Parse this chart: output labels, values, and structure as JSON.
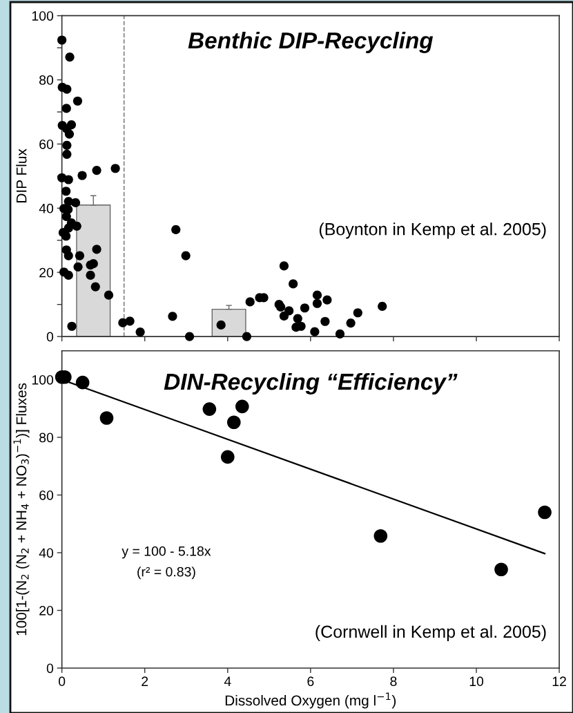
{
  "chart_data": [
    {
      "type": "scatter",
      "title": "Benthic DIP-Recycling",
      "ylabel": "DIP Flux",
      "xlim": [
        0,
        12
      ],
      "xticks": [
        0,
        2,
        4,
        6,
        8,
        10,
        12
      ],
      "tick_labels": "y",
      "ylim": [
        0,
        100
      ],
      "yticks": [
        0,
        {
          "value": 10,
          "label": null
        },
        20,
        {
          "value": 30,
          "label": null
        },
        40,
        {
          "value": 50,
          "label": null
        },
        60,
        {
          "value": 70,
          "label": null
        },
        80,
        {
          "value": 90,
          "label": null
        },
        100
      ],
      "ref_lines": [
        {
          "axis": "x",
          "value": 1.5,
          "label": null,
          "color": "#808080",
          "line_style": "dashed"
        }
      ],
      "annotations": [
        "(Boynton in Kemp et al. 2005)"
      ],
      "series": [
        {
          "type": "bar",
          "color": "#d9d9d9",
          "x": [
            0.76,
            4.03
          ],
          "values": [
            41.0,
            8.5
          ],
          "errors": [
            [
              41.0,
              43.9
            ],
            [
              8.5,
              9.7
            ]
          ]
        },
        {
          "color": "#000000",
          "marker": "circle",
          "x": [
            0,
            0.19,
            0.01,
            0.12,
            0.38,
            0.11,
            0.01,
            0.23,
            0.12,
            0.18,
            0.12,
            0.12,
            0,
            0.16,
            0.49,
            0.84,
            1.29,
            0.1,
            0.16,
            0.33,
            0.05,
            0.15,
            0.11,
            0.03,
            0.1,
            0.16,
            0.23,
            0.36,
            0.11,
            0.16,
            0.43,
            0.84,
            0.05,
            0.16,
            0.39,
            0.69,
            0.76,
            0.69,
            0.81,
            1.13,
            0.24,
            1.47,
            1.64,
            1.89,
            2.67,
            2.75,
            2.99,
            3.08,
            3.84,
            4.46,
            4.54,
            4.77,
            4.87,
            5.36,
            5.58,
            5.24,
            5.28,
            5.48,
            5.36,
            5.86,
            5.69,
            5.65,
            5.77,
            6.16,
            6.16,
            6.4,
            6.35,
            6.1,
            6.71,
            6.97,
            7.14,
            7.73
          ],
          "values": [
            92.4,
            87.1,
            77.7,
            77.1,
            73.4,
            71.1,
            65.8,
            66,
            64.7,
            63.1,
            59.6,
            56.8,
            49.5,
            48.9,
            50.2,
            51.8,
            52.4,
            45.3,
            42.1,
            41.7,
            39.9,
            39.6,
            37.4,
            32.4,
            31.3,
            33.8,
            35.4,
            34.4,
            27,
            25.2,
            25.2,
            27.2,
            20.1,
            19.1,
            21.7,
            22.3,
            22.7,
            19.1,
            15.5,
            12.9,
            3.2,
            4.3,
            4.8,
            1.4,
            6.3,
            33.3,
            25.2,
            0,
            3.6,
            0,
            10.8,
            12.1,
            12.1,
            22,
            16.4,
            10,
            9.2,
            8,
            6.4,
            8.9,
            5.6,
            2.9,
            3.2,
            12.9,
            10.3,
            11.4,
            4.7,
            1.5,
            0.8,
            4.2,
            7.4,
            9.4
          ]
        }
      ]
    },
    {
      "type": "scatter",
      "title": "DIN-Recycling “Efficiency”",
      "xlabel": "Dissolved Oxygen (mg l$^{−1}$)",
      "ylabel": "100[1-(N$_{2}$ (N$_{2}$ + NH$_{4}$ + NO$_{3}$)$^{−1}$)] Fluxes",
      "xlim": [
        0,
        12
      ],
      "xticks": [
        0,
        2,
        4,
        6,
        8,
        10,
        12
      ],
      "ylim": [
        0,
        110
      ],
      "yticks": [
        0,
        20,
        40,
        60,
        80,
        100
      ],
      "annotations": [
        "y = 100 - 5.18x",
        "(r² = 0.83)",
        "(Cornwell in Kemp et al. 2005)"
      ],
      "series": [
        {
          "color": "#000000",
          "marker": "circle",
          "x": [
            0,
            0.07,
            0.5,
            1.08,
            3.56,
            4.35,
            4.15,
            4.0,
            7.69,
            10.6,
            11.65
          ],
          "values": [
            100.9,
            100.9,
            99.0,
            86.7,
            89.8,
            90.7,
            85.2,
            73.2,
            45.8,
            34.2,
            54.0
          ]
        },
        {
          "type": "line",
          "color": "#000000",
          "line_style": "solid",
          "x": [
            0,
            11.65
          ],
          "values": [
            100,
            39.7
          ]
        }
      ]
    }
  ]
}
